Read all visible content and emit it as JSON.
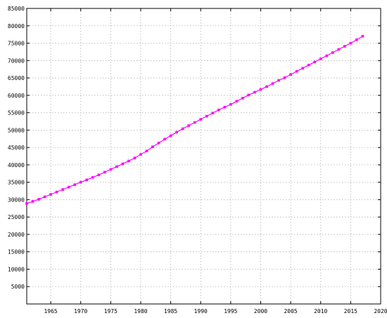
{
  "chart_data": {
    "type": "line",
    "title": "",
    "xlabel": "",
    "ylabel": "",
    "xlim": [
      1961,
      2020
    ],
    "ylim": [
      0,
      85000
    ],
    "grid": true,
    "x_ticks": [
      1965,
      1970,
      1975,
      1980,
      1985,
      1990,
      1995,
      2000,
      2005,
      2010,
      2015,
      2020
    ],
    "y_ticks": [
      5000,
      10000,
      15000,
      20000,
      25000,
      30000,
      35000,
      40000,
      45000,
      50000,
      55000,
      60000,
      65000,
      70000,
      75000,
      80000,
      85000
    ],
    "series_color": "#ff00ff",
    "marker": "square",
    "series": [
      {
        "x": [
          1961,
          1962,
          1963,
          1964,
          1965,
          1966,
          1967,
          1968,
          1969,
          1970,
          1971,
          1972,
          1973,
          1974,
          1975,
          1976,
          1977,
          1978,
          1979,
          1980,
          1981,
          1982,
          1983,
          1984,
          1985,
          1986,
          1987,
          1988,
          1989,
          1990,
          1991,
          1992,
          1993,
          1994,
          1995,
          1996,
          1997,
          1998,
          1999,
          2000,
          2001,
          2002,
          2003,
          2004,
          2005,
          2006,
          2007,
          2008,
          2009,
          2010,
          2011,
          2012,
          2013,
          2014,
          2015,
          2016,
          2017
        ],
        "values": [
          28900,
          29500,
          30100,
          30800,
          31500,
          32200,
          32900,
          33600,
          34300,
          35000,
          35700,
          36400,
          37100,
          37900,
          38700,
          39500,
          40300,
          41100,
          42000,
          43000,
          44000,
          45200,
          46300,
          47400,
          48400,
          49400,
          50400,
          51300,
          52200,
          53100,
          54000,
          54900,
          55800,
          56600,
          57400,
          58300,
          59200,
          60100,
          60900,
          61700,
          62500,
          63400,
          64300,
          65100,
          66000,
          66900,
          67800,
          68700,
          69600,
          70500,
          71400,
          72300,
          73200,
          74100,
          75000,
          76000,
          77000
        ]
      }
    ]
  }
}
